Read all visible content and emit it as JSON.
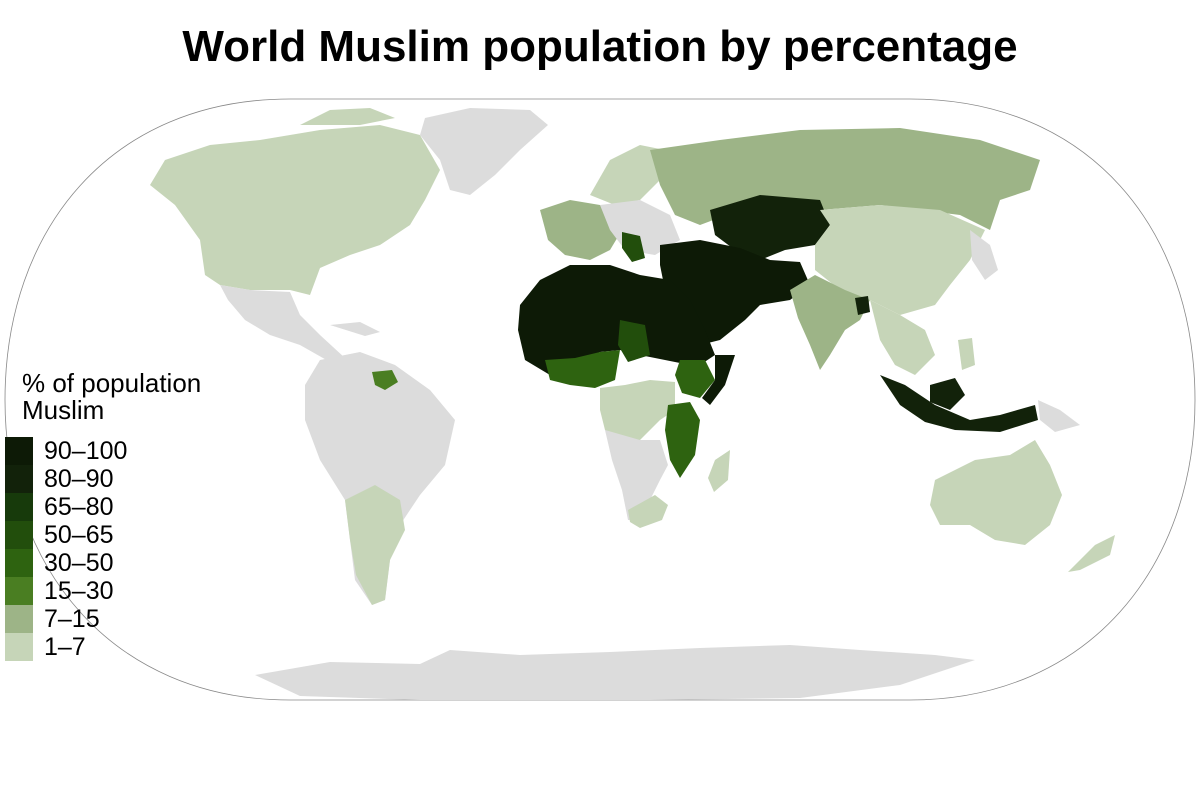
{
  "title": "World Muslim population by percentage",
  "legend": {
    "title_line1": "% of population",
    "title_line2": "Muslim",
    "items": [
      {
        "label": "90–100",
        "color": "#0d1a06"
      },
      {
        "label": "80–90",
        "color": "#12220a"
      },
      {
        "label": "65–80",
        "color": "#173a0b"
      },
      {
        "label": "50–65",
        "color": "#224e0c"
      },
      {
        "label": "30–50",
        "color": "#2e6310"
      },
      {
        "label": "15–30",
        "color": "#4a7e22"
      },
      {
        "label": "7–15",
        "color": "#9db487"
      },
      {
        "label": "1–7",
        "color": "#c6d5b8"
      }
    ]
  },
  "colors": {
    "no_data": "#dcdcdc",
    "ocean": "#ffffff",
    "border": "#ffffff"
  }
}
